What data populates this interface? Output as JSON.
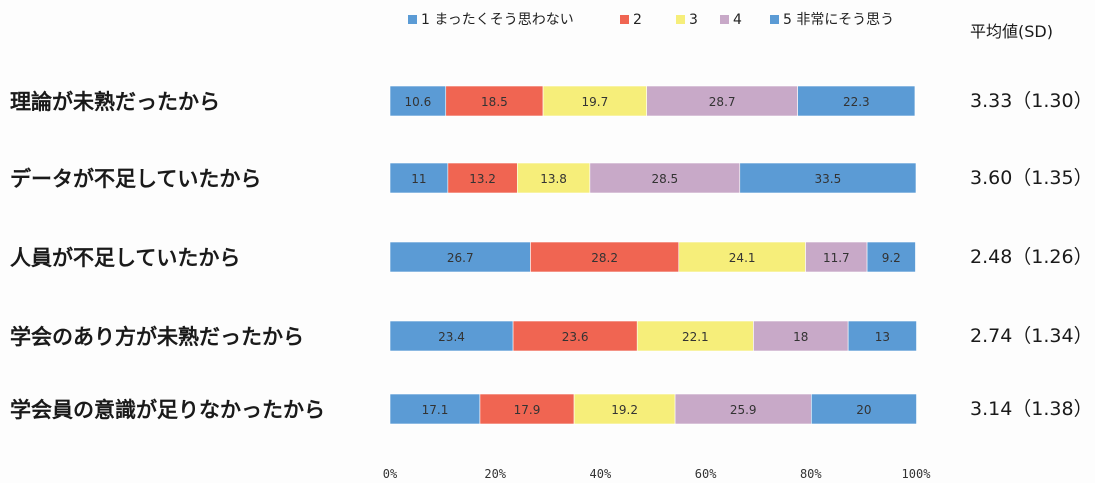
{
  "chart_data": {
    "type": "bar",
    "orientation": "horizontal",
    "stacked": true,
    "percent": true,
    "legend_position": "top",
    "categories": [
      "理論が未熟だったから",
      "データが不足していたから",
      "人員が不足していたから",
      "学会のあり方が未熟だったから",
      "学会員の意識が足りなかったから"
    ],
    "series": [
      {
        "name": "1 まったくそう思わない",
        "color": "#5b9bd5",
        "values": [
          10.6,
          11,
          26.7,
          23.4,
          17.1
        ]
      },
      {
        "name": "2",
        "color": "#f06552",
        "values": [
          18.5,
          13.2,
          28.2,
          23.6,
          17.9
        ]
      },
      {
        "name": "3",
        "color": "#f6ee7a",
        "values": [
          19.7,
          13.8,
          24.1,
          22.1,
          19.2
        ]
      },
      {
        "name": "4",
        "color": "#c8a9c8",
        "values": [
          28.7,
          28.5,
          11.7,
          18,
          25.9
        ]
      },
      {
        "name": "5 非常にそう思う",
        "color": "#5b9bd5",
        "values": [
          22.3,
          33.5,
          9.2,
          13,
          20
        ]
      }
    ],
    "data_labels": [
      [
        "10.6",
        "18.5",
        "19.7",
        "28.7",
        "22.3"
      ],
      [
        "11",
        "13.2",
        "13.8",
        "28.5",
        "33.5"
      ],
      [
        "26.7",
        "28.2",
        "24.1",
        "11.7",
        "9.2"
      ],
      [
        "23.4",
        "23.6",
        "22.1",
        "18",
        "13"
      ],
      [
        "17.1",
        "17.9",
        "19.2",
        "25.9",
        "20"
      ]
    ],
    "xlim": [
      0,
      100
    ],
    "x_ticks": [
      "0%",
      "20%",
      "40%",
      "60%",
      "80%",
      "100%"
    ],
    "stats_header": "平均値(SD)",
    "stats": [
      "3.33（1.30）",
      "3.60（1.35）",
      "2.48（1.26）",
      "2.74（1.34）",
      "3.14（1.38）"
    ]
  }
}
